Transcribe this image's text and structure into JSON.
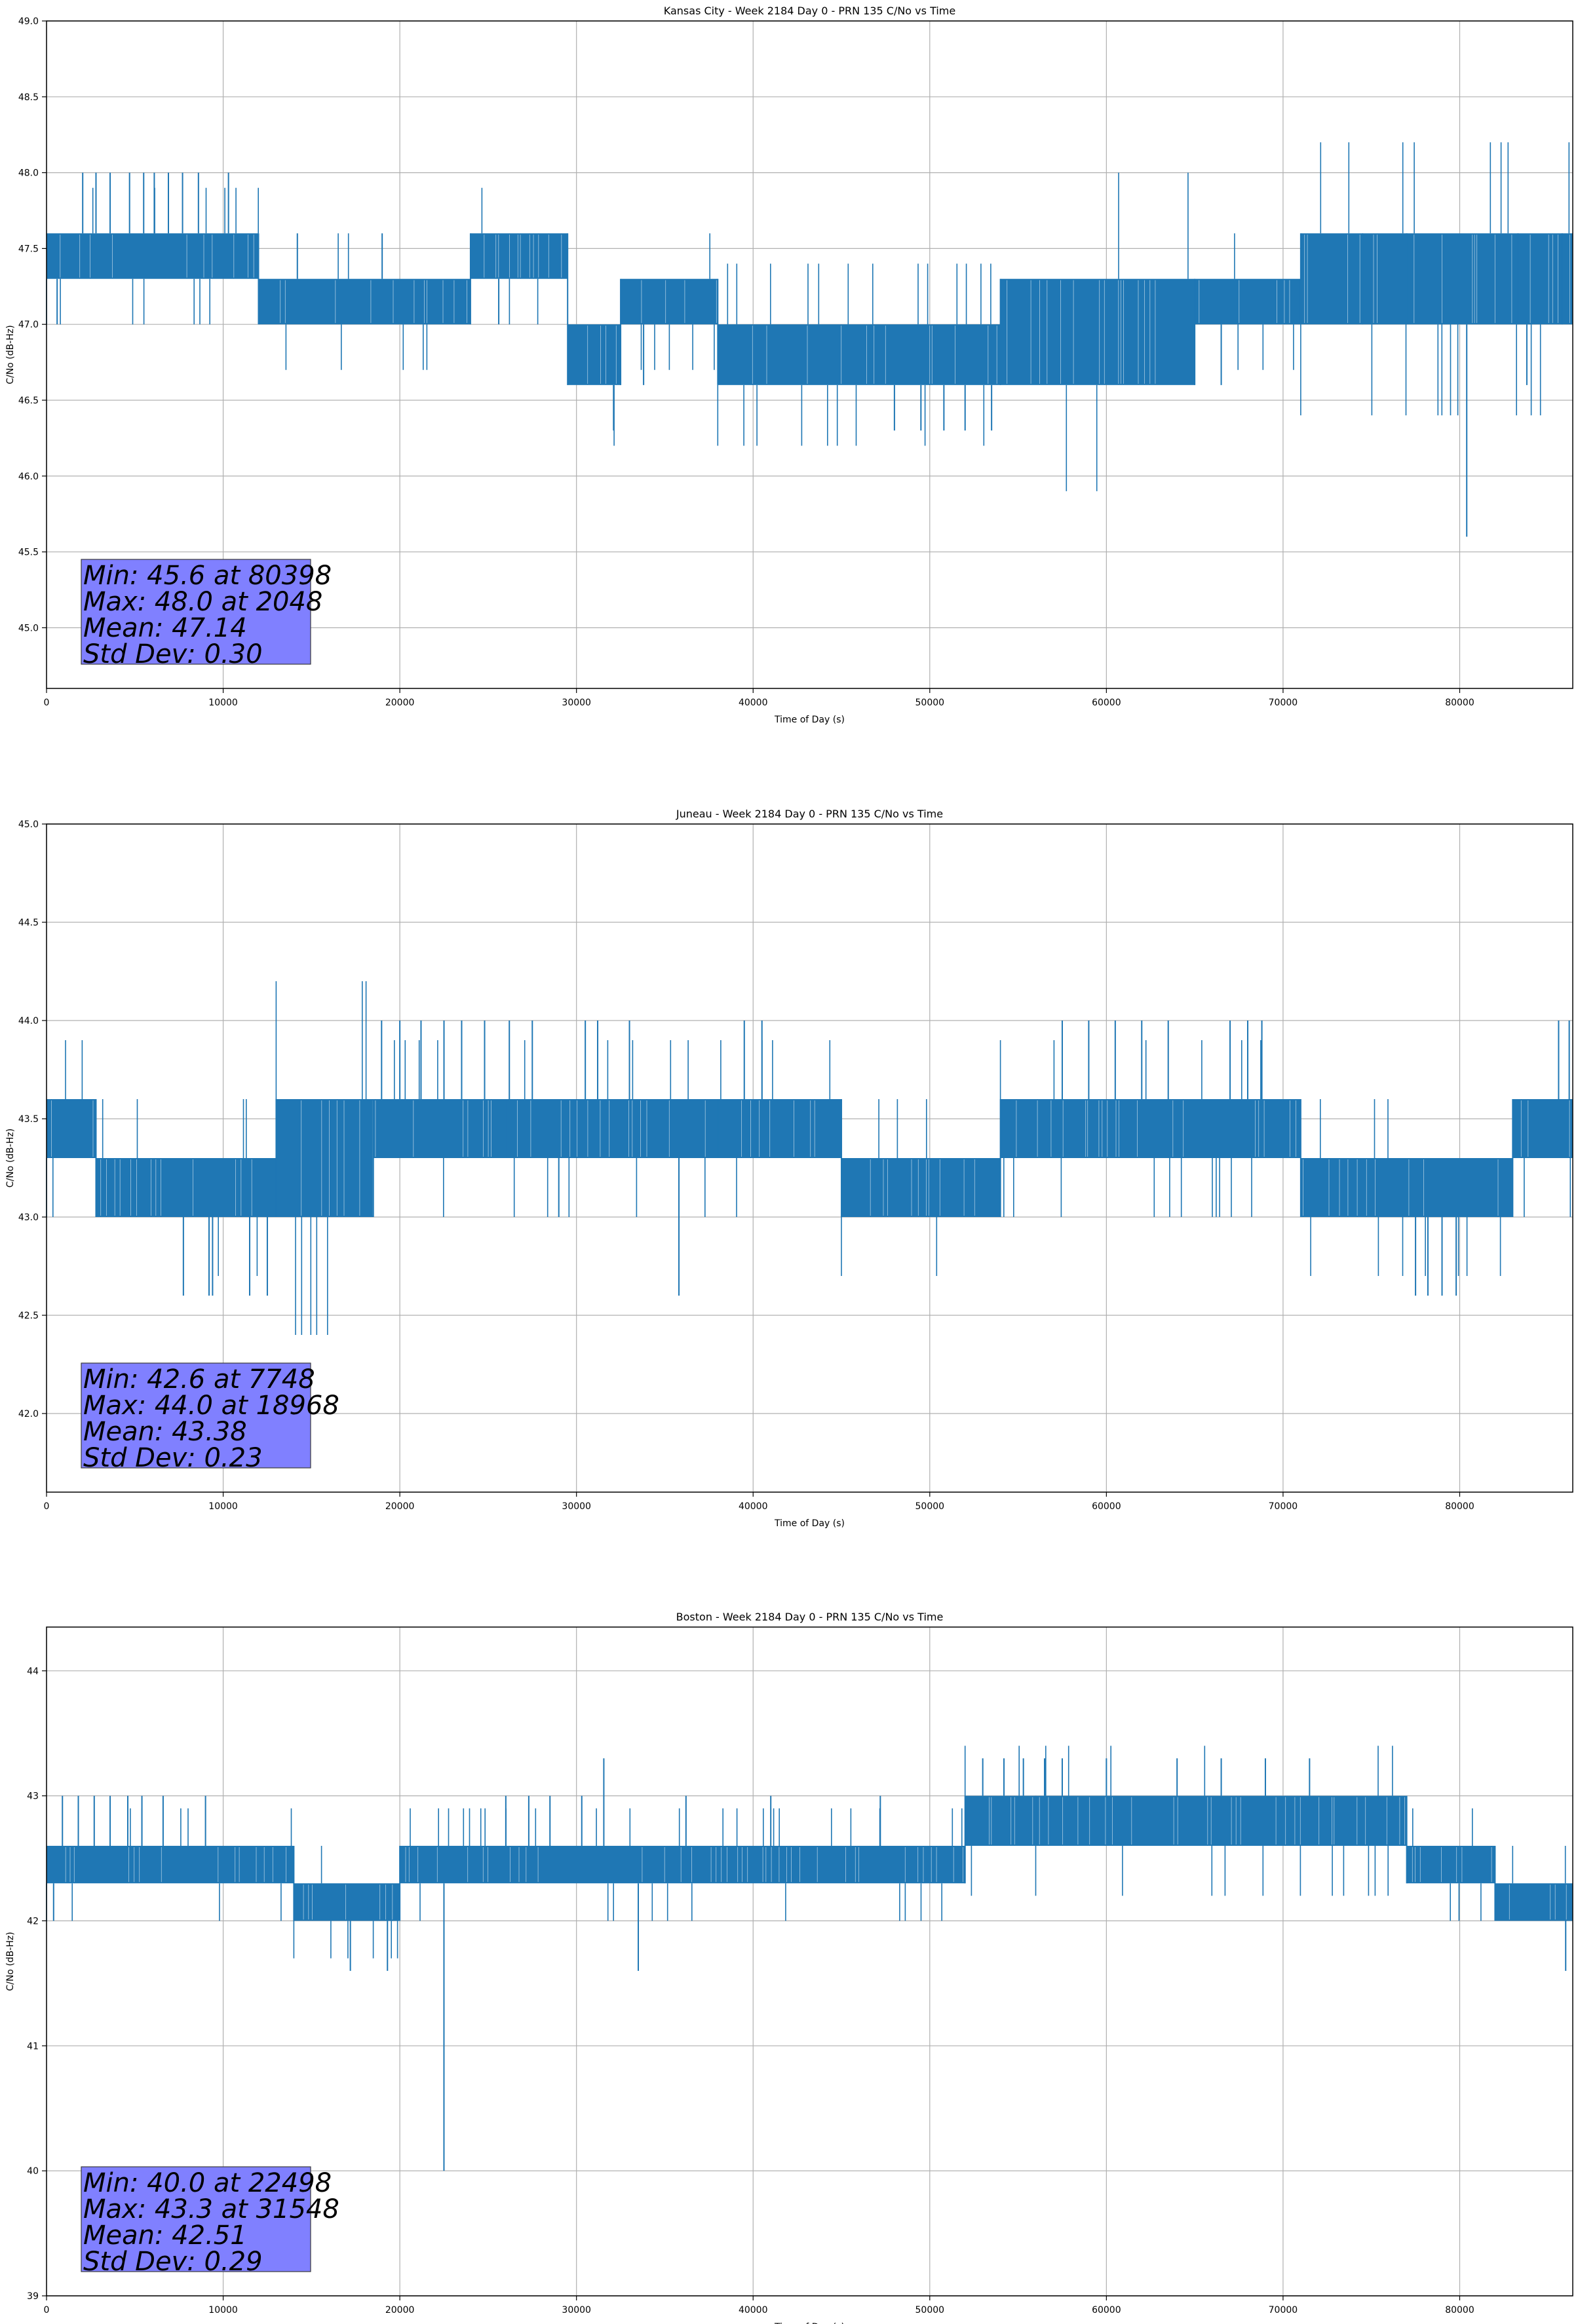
{
  "colors": {
    "series": "#1f77b4",
    "grid": "#b0b0b0",
    "statsBox": "#8080ff",
    "statsBoxEdge": "#3a3a3a"
  },
  "chart_data": [
    {
      "type": "line",
      "title": "Kansas City - Week 2184 Day 0 - PRN 135 C/No vs Time",
      "xlabel": "Time of Day (s)",
      "ylabel": "C/No (dB-Hz)",
      "xlim": [
        0,
        86400
      ],
      "ylim": [
        44.6,
        49.0
      ],
      "xticks": [
        0,
        10000,
        20000,
        30000,
        40000,
        50000,
        60000,
        70000,
        80000
      ],
      "yticks": [
        45.0,
        45.5,
        46.0,
        46.5,
        47.0,
        47.5,
        48.0,
        48.5,
        49.0
      ],
      "ytick_labels": [
        "45.0",
        "45.5",
        "46.0",
        "46.5",
        "47.0",
        "47.5",
        "48.0",
        "48.5",
        "49.0"
      ],
      "grid": true,
      "series": [
        {
          "bands": [
            {
              "x0": 0,
              "x1": 12000,
              "lo": 47.3,
              "hi": 47.6
            },
            {
              "x0": 12000,
              "x1": 24000,
              "lo": 47.0,
              "hi": 47.3
            },
            {
              "x0": 24000,
              "x1": 29500,
              "lo": 47.3,
              "hi": 47.6
            },
            {
              "x0": 29500,
              "x1": 32500,
              "lo": 46.6,
              "hi": 47.0
            },
            {
              "x0": 32500,
              "x1": 38000,
              "lo": 47.0,
              "hi": 47.3
            },
            {
              "x0": 38000,
              "x1": 54000,
              "lo": 46.6,
              "hi": 47.0
            },
            {
              "x0": 54000,
              "x1": 65000,
              "lo": 46.6,
              "hi": 47.3
            },
            {
              "x0": 65000,
              "x1": 71000,
              "lo": 47.0,
              "hi": 47.3
            },
            {
              "x0": 71000,
              "x1": 86400,
              "lo": 47.0,
              "hi": 47.6
            }
          ],
          "spikes": [
            {
              "x": 600,
              "y": 47.0
            },
            {
              "x": 2048,
              "y": 48.0
            },
            {
              "x": 2800,
              "y": 48.0
            },
            {
              "x": 3600,
              "y": 48.0
            },
            {
              "x": 4700,
              "y": 48.0
            },
            {
              "x": 5500,
              "y": 48.0
            },
            {
              "x": 6100,
              "y": 48.0
            },
            {
              "x": 6900,
              "y": 48.0
            },
            {
              "x": 7700,
              "y": 48.0
            },
            {
              "x": 8600,
              "y": 48.0
            },
            {
              "x": 10300,
              "y": 48.0
            },
            {
              "x": 14200,
              "y": 47.6
            },
            {
              "x": 19000,
              "y": 47.6
            },
            {
              "x": 25600,
              "y": 47.0
            },
            {
              "x": 32100,
              "y": 46.3
            },
            {
              "x": 33800,
              "y": 46.6
            },
            {
              "x": 48000,
              "y": 46.3
            },
            {
              "x": 49500,
              "y": 46.3
            },
            {
              "x": 50800,
              "y": 46.3
            },
            {
              "x": 52000,
              "y": 46.3
            },
            {
              "x": 53500,
              "y": 46.3
            },
            {
              "x": 66500,
              "y": 46.6
            },
            {
              "x": 74500,
              "y": 47.6
            },
            {
              "x": 77000,
              "y": 47.6
            },
            {
              "x": 80398,
              "y": 45.6
            },
            {
              "x": 83300,
              "y": 47.6
            },
            {
              "x": 83800,
              "y": 46.6
            },
            {
              "x": 85800,
              "y": 47.6
            }
          ]
        }
      ],
      "stats": [
        "Min: 45.6 at 80398",
        "Max: 48.0 at 2048",
        "Mean: 47.14",
        "Std Dev: 0.30"
      ]
    },
    {
      "type": "line",
      "title": "Juneau - Week 2184 Day 0 - PRN 135 C/No vs Time",
      "xlabel": "Time of Day (s)",
      "ylabel": "C/No (dB-Hz)",
      "xlim": [
        0,
        86400
      ],
      "ylim": [
        41.6,
        45.0
      ],
      "xticks": [
        0,
        10000,
        20000,
        30000,
        40000,
        50000,
        60000,
        70000,
        80000
      ],
      "yticks": [
        42.0,
        42.5,
        43.0,
        43.5,
        44.0,
        44.5,
        45.0
      ],
      "ytick_labels": [
        "42.0",
        "42.5",
        "43.0",
        "43.5",
        "44.0",
        "44.5",
        "45.0"
      ],
      "grid": true,
      "series": [
        {
          "bands": [
            {
              "x0": 0,
              "x1": 2800,
              "lo": 43.3,
              "hi": 43.6
            },
            {
              "x0": 2800,
              "x1": 13000,
              "lo": 43.0,
              "hi": 43.3
            },
            {
              "x0": 13000,
              "x1": 18500,
              "lo": 43.0,
              "hi": 43.6
            },
            {
              "x0": 18500,
              "x1": 26000,
              "lo": 43.3,
              "hi": 43.6
            },
            {
              "x0": 26000,
              "x1": 38000,
              "lo": 43.3,
              "hi": 43.6
            },
            {
              "x0": 38000,
              "x1": 45000,
              "lo": 43.3,
              "hi": 43.6
            },
            {
              "x0": 45000,
              "x1": 54000,
              "lo": 43.0,
              "hi": 43.3
            },
            {
              "x0": 54000,
              "x1": 71000,
              "lo": 43.3,
              "hi": 43.6
            },
            {
              "x0": 71000,
              "x1": 83000,
              "lo": 43.0,
              "hi": 43.3
            },
            {
              "x0": 83000,
              "x1": 86400,
              "lo": 43.3,
              "hi": 43.6
            }
          ],
          "spikes": [
            {
              "x": 7748,
              "y": 42.6
            },
            {
              "x": 9200,
              "y": 42.6
            },
            {
              "x": 9400,
              "y": 42.6
            },
            {
              "x": 11500,
              "y": 42.6
            },
            {
              "x": 12500,
              "y": 42.6
            },
            {
              "x": 18968,
              "y": 44.0
            },
            {
              "x": 20000,
              "y": 44.0
            },
            {
              "x": 21200,
              "y": 44.0
            },
            {
              "x": 22500,
              "y": 44.0
            },
            {
              "x": 23500,
              "y": 44.0
            },
            {
              "x": 24800,
              "y": 44.0
            },
            {
              "x": 26200,
              "y": 44.0
            },
            {
              "x": 27500,
              "y": 44.0
            },
            {
              "x": 29000,
              "y": 43.0
            },
            {
              "x": 30500,
              "y": 44.0
            },
            {
              "x": 31200,
              "y": 44.0
            },
            {
              "x": 33000,
              "y": 44.0
            },
            {
              "x": 35800,
              "y": 42.6
            },
            {
              "x": 39500,
              "y": 44.0
            },
            {
              "x": 40500,
              "y": 44.0
            },
            {
              "x": 57500,
              "y": 44.0
            },
            {
              "x": 59000,
              "y": 44.0
            },
            {
              "x": 60500,
              "y": 44.0
            },
            {
              "x": 62000,
              "y": 44.0
            },
            {
              "x": 63500,
              "y": 44.0
            },
            {
              "x": 67000,
              "y": 44.0
            },
            {
              "x": 68000,
              "y": 44.0
            },
            {
              "x": 68800,
              "y": 44.0
            },
            {
              "x": 77500,
              "y": 42.6
            },
            {
              "x": 78200,
              "y": 42.6
            },
            {
              "x": 79000,
              "y": 42.6
            },
            {
              "x": 79800,
              "y": 42.6
            },
            {
              "x": 85600,
              "y": 44.0
            },
            {
              "x": 86200,
              "y": 44.0
            }
          ]
        }
      ],
      "stats": [
        "Min: 42.6 at 7748",
        "Max: 44.0 at 18968",
        "Mean: 43.38",
        "Std Dev: 0.23"
      ]
    },
    {
      "type": "line",
      "title": "Boston - Week 2184 Day 0 - PRN 135 C/No vs Time",
      "xlabel": "Time of Day (s)",
      "ylabel": "C/No (dB-Hz)",
      "xlim": [
        0,
        86400
      ],
      "ylim": [
        39.0,
        44.35
      ],
      "xticks": [
        0,
        10000,
        20000,
        30000,
        40000,
        50000,
        60000,
        70000,
        80000
      ],
      "yticks": [
        39,
        40,
        41,
        42,
        43,
        44
      ],
      "ytick_labels": [
        "39",
        "40",
        "41",
        "42",
        "43",
        "44"
      ],
      "grid": true,
      "series": [
        {
          "bands": [
            {
              "x0": 0,
              "x1": 14000,
              "lo": 42.3,
              "hi": 42.6
            },
            {
              "x0": 14000,
              "x1": 20000,
              "lo": 42.0,
              "hi": 42.3
            },
            {
              "x0": 20000,
              "x1": 52000,
              "lo": 42.3,
              "hi": 42.6
            },
            {
              "x0": 52000,
              "x1": 56000,
              "lo": 42.6,
              "hi": 43.0
            },
            {
              "x0": 56000,
              "x1": 77000,
              "lo": 42.6,
              "hi": 43.0
            },
            {
              "x0": 77000,
              "x1": 82000,
              "lo": 42.3,
              "hi": 42.6
            },
            {
              "x0": 82000,
              "x1": 86400,
              "lo": 42.0,
              "hi": 42.3
            }
          ],
          "spikes": [
            {
              "x": 400,
              "y": 42.0
            },
            {
              "x": 900,
              "y": 43.0
            },
            {
              "x": 1800,
              "y": 43.0
            },
            {
              "x": 2700,
              "y": 43.0
            },
            {
              "x": 3600,
              "y": 43.0
            },
            {
              "x": 4600,
              "y": 43.0
            },
            {
              "x": 5400,
              "y": 43.0
            },
            {
              "x": 6600,
              "y": 43.0
            },
            {
              "x": 9000,
              "y": 43.0
            },
            {
              "x": 17200,
              "y": 41.6
            },
            {
              "x": 19300,
              "y": 41.6
            },
            {
              "x": 22498,
              "y": 40.0
            },
            {
              "x": 26000,
              "y": 43.0
            },
            {
              "x": 27300,
              "y": 43.0
            },
            {
              "x": 28500,
              "y": 43.0
            },
            {
              "x": 30300,
              "y": 43.0
            },
            {
              "x": 31548,
              "y": 43.3
            },
            {
              "x": 33500,
              "y": 41.6
            },
            {
              "x": 36200,
              "y": 43.0
            },
            {
              "x": 41000,
              "y": 43.0
            },
            {
              "x": 47200,
              "y": 43.0
            },
            {
              "x": 53000,
              "y": 43.3
            },
            {
              "x": 54200,
              "y": 43.3
            },
            {
              "x": 55300,
              "y": 43.3
            },
            {
              "x": 56500,
              "y": 43.3
            },
            {
              "x": 57500,
              "y": 43.3
            },
            {
              "x": 60000,
              "y": 43.3
            },
            {
              "x": 64000,
              "y": 43.3
            },
            {
              "x": 66500,
              "y": 43.3
            },
            {
              "x": 69000,
              "y": 43.3
            },
            {
              "x": 71500,
              "y": 43.3
            },
            {
              "x": 86000,
              "y": 41.6
            }
          ]
        }
      ],
      "stats": [
        "Min: 40.0 at 22498",
        "Max: 43.3 at 31548",
        "Mean: 42.51",
        "Std Dev: 0.29"
      ]
    }
  ]
}
